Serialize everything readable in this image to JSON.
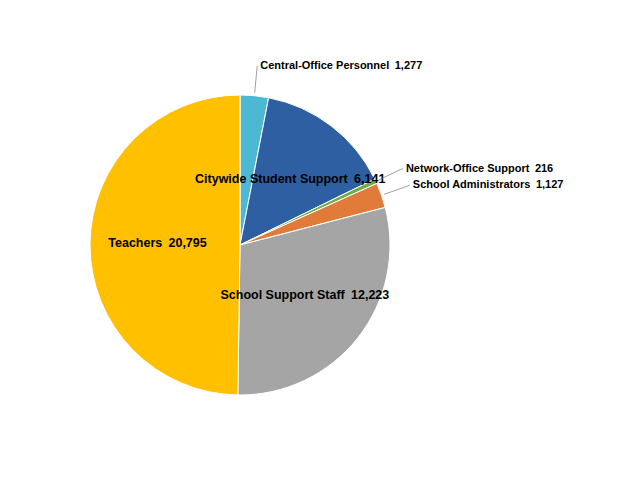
{
  "chart_data": {
    "type": "pie",
    "categories": [
      "Central-Office Personnel",
      "Citywide Student Support",
      "Network-Office Support",
      "School Administrators",
      "School Support Staff",
      "Teachers"
    ],
    "values": [
      1277,
      6141,
      216,
      1127,
      12223,
      20795
    ],
    "value_labels": [
      "1,277",
      "6,141",
      "216",
      "1,127",
      "12,223",
      "20,795"
    ],
    "colors": [
      "#4db8d4",
      "#2e5fa3",
      "#70ad47",
      "#e07b39",
      "#a5a5a5",
      "#ffc000"
    ],
    "data_labels": true
  }
}
